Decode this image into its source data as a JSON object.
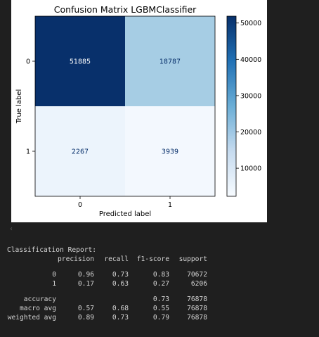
{
  "chart_data": {
    "type": "heatmap",
    "title": "Confusion Matrix LGBMClassifier",
    "xlabel": "Predicted label",
    "ylabel": "True label",
    "row_labels": [
      "0",
      "1"
    ],
    "col_labels": [
      "0",
      "1"
    ],
    "values": [
      [
        51885,
        18787
      ],
      [
        2267,
        3939
      ]
    ],
    "colormap": "Blues",
    "colorbar_ticks": [
      "10000",
      "20000",
      "30000",
      "40000",
      "50000"
    ],
    "colorbar_range": [
      2267,
      51885
    ]
  },
  "report": {
    "title": "Classification Report:",
    "header": [
      "",
      "precision",
      "recall",
      "f1-score",
      "support"
    ],
    "rows": [
      [
        "0",
        "0.96",
        "0.73",
        "0.83",
        "70672"
      ],
      [
        "1",
        "0.17",
        "0.63",
        "0.27",
        "6206"
      ],
      [
        "accuracy",
        "",
        "",
        "0.73",
        "76878"
      ],
      [
        "macro avg",
        "0.57",
        "0.68",
        "0.55",
        "76878"
      ],
      [
        "weighted avg",
        "0.89",
        "0.73",
        "0.79",
        "76878"
      ]
    ]
  },
  "scroll_arrow": "‹",
  "colors": {
    "cell_dark": "#08306b",
    "cell_mid": "#a6cde4",
    "cell_light": "#f3f8fe",
    "cell_lightest": "#ecf4fc",
    "text_on_dark": "#ffffff",
    "text_on_light": "#08306b",
    "cbar_top": "#08306b",
    "cbar_bottom": "#f7fbff"
  }
}
